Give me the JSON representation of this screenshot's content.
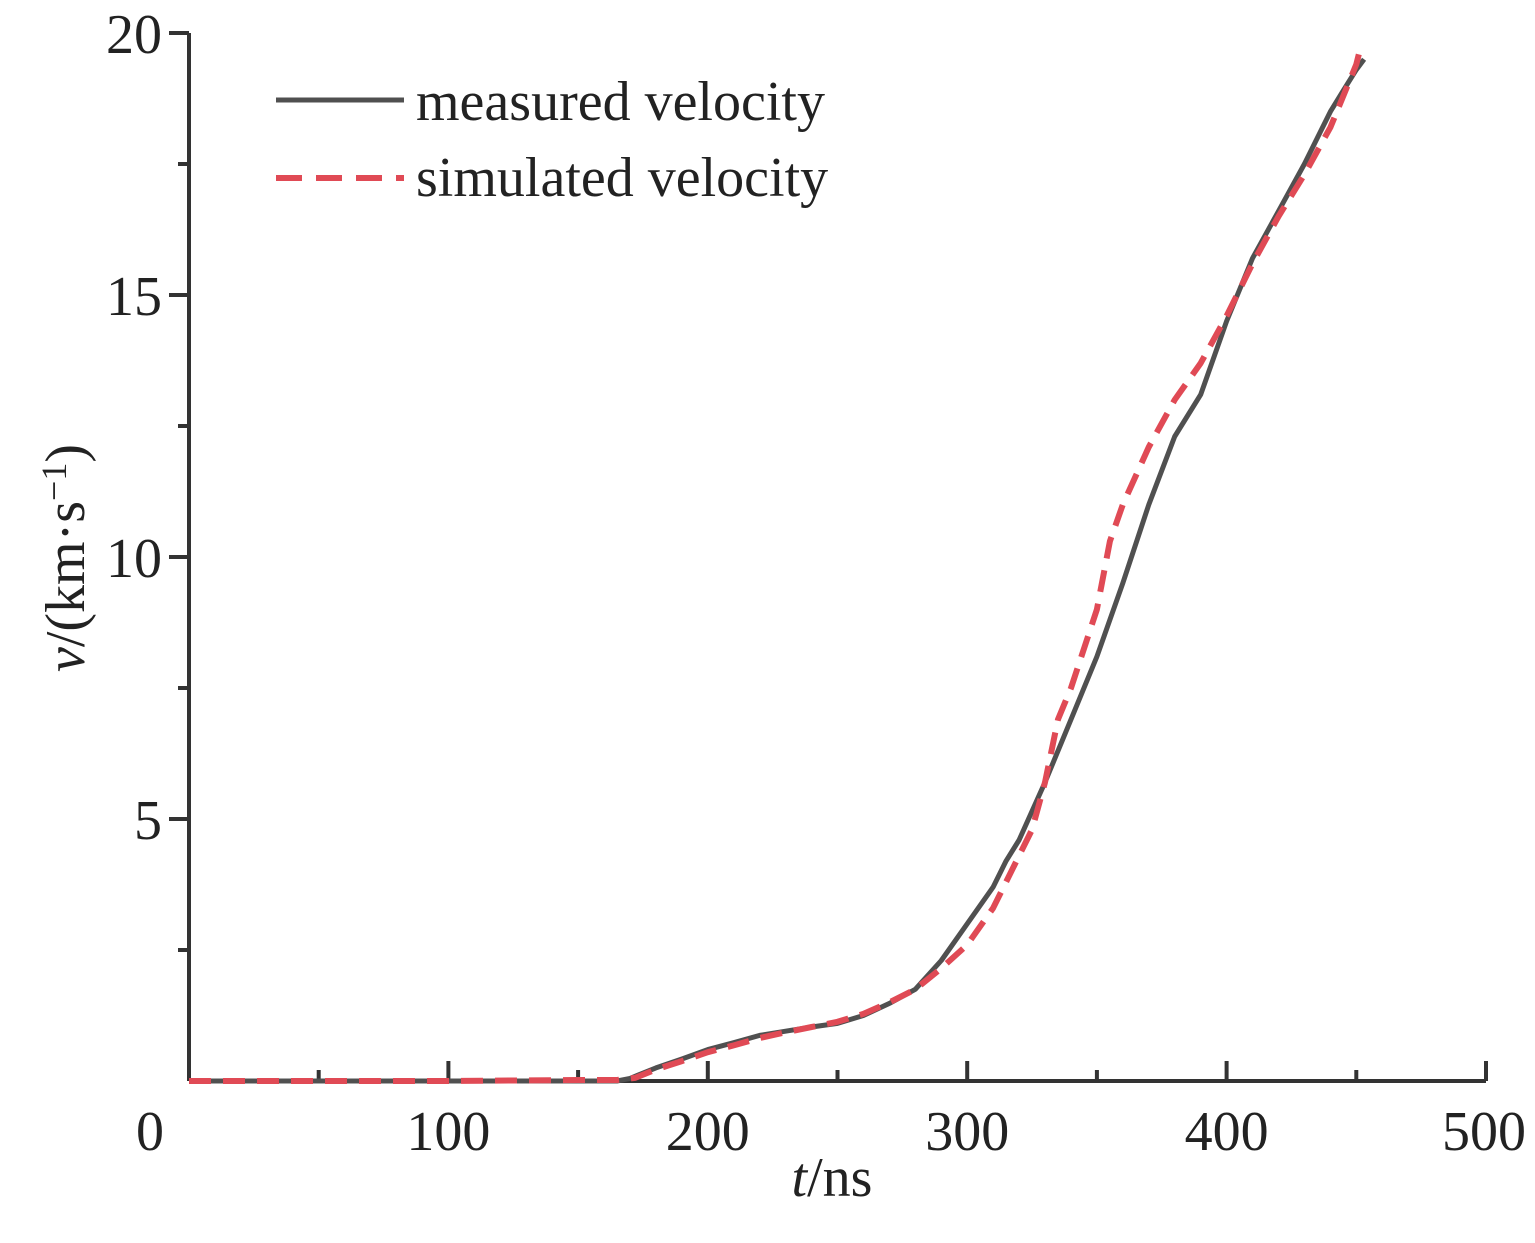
{
  "chart_data": {
    "type": "line",
    "x_axis": {
      "label_italic": "t",
      "label_rest": "/ns",
      "range": [
        0,
        500
      ],
      "ticks": [
        0,
        100,
        200,
        300,
        400,
        500
      ],
      "tick_labels": [
        "0",
        "100",
        "200",
        "300",
        "400",
        "500"
      ],
      "minor_step": 50
    },
    "y_axis": {
      "label_italic": "v",
      "label_rest": "/(km·s",
      "label_sup": "−1",
      "label_close": ")",
      "range": [
        0,
        20
      ],
      "ticks": [
        5,
        10,
        15,
        20
      ],
      "tick_labels": [
        "5",
        "10",
        "15",
        "20"
      ],
      "minor_step": 2.5
    },
    "grid": false,
    "legend": {
      "position": "top-left",
      "entries": [
        "measured velocity",
        "simulated velocity"
      ]
    },
    "series": [
      {
        "name": "measured velocity",
        "color": "#505050",
        "style": "solid",
        "points": [
          [
            0,
            0
          ],
          [
            50,
            0
          ],
          [
            100,
            0
          ],
          [
            150,
            0
          ],
          [
            165,
            0
          ],
          [
            170,
            0.05
          ],
          [
            180,
            0.25
          ],
          [
            190,
            0.42
          ],
          [
            200,
            0.6
          ],
          [
            210,
            0.73
          ],
          [
            220,
            0.87
          ],
          [
            230,
            0.95
          ],
          [
            240,
            1.03
          ],
          [
            250,
            1.1
          ],
          [
            260,
            1.25
          ],
          [
            270,
            1.48
          ],
          [
            280,
            1.75
          ],
          [
            290,
            2.3
          ],
          [
            300,
            3.0
          ],
          [
            310,
            3.7
          ],
          [
            315,
            4.2
          ],
          [
            320,
            4.6
          ],
          [
            330,
            5.7
          ],
          [
            340,
            6.9
          ],
          [
            350,
            8.1
          ],
          [
            360,
            9.5
          ],
          [
            370,
            11.0
          ],
          [
            380,
            12.3
          ],
          [
            390,
            13.1
          ],
          [
            400,
            14.5
          ],
          [
            410,
            15.7
          ],
          [
            420,
            16.6
          ],
          [
            430,
            17.5
          ],
          [
            440,
            18.5
          ],
          [
            445,
            18.9
          ],
          [
            450,
            19.3
          ],
          [
            453,
            19.5
          ]
        ]
      },
      {
        "name": "simulated velocity",
        "color": "#e04a55",
        "style": "dashed",
        "points": [
          [
            0,
            0
          ],
          [
            50,
            0
          ],
          [
            100,
            0
          ],
          [
            150,
            0.02
          ],
          [
            165,
            0.02
          ],
          [
            172,
            0.06
          ],
          [
            180,
            0.22
          ],
          [
            190,
            0.38
          ],
          [
            200,
            0.55
          ],
          [
            210,
            0.68
          ],
          [
            220,
            0.82
          ],
          [
            230,
            0.93
          ],
          [
            240,
            1.03
          ],
          [
            250,
            1.13
          ],
          [
            260,
            1.28
          ],
          [
            270,
            1.5
          ],
          [
            280,
            1.75
          ],
          [
            290,
            2.15
          ],
          [
            300,
            2.6
          ],
          [
            310,
            3.3
          ],
          [
            320,
            4.3
          ],
          [
            325,
            4.8
          ],
          [
            330,
            5.7
          ],
          [
            335,
            6.9
          ],
          [
            340,
            7.5
          ],
          [
            350,
            9.0
          ],
          [
            355,
            10.3
          ],
          [
            360,
            11.0
          ],
          [
            370,
            12.1
          ],
          [
            380,
            13.0
          ],
          [
            390,
            13.7
          ],
          [
            400,
            14.6
          ],
          [
            410,
            15.6
          ],
          [
            420,
            16.5
          ],
          [
            430,
            17.3
          ],
          [
            440,
            18.2
          ],
          [
            450,
            19.4
          ],
          [
            452,
            19.8
          ]
        ]
      }
    ]
  }
}
